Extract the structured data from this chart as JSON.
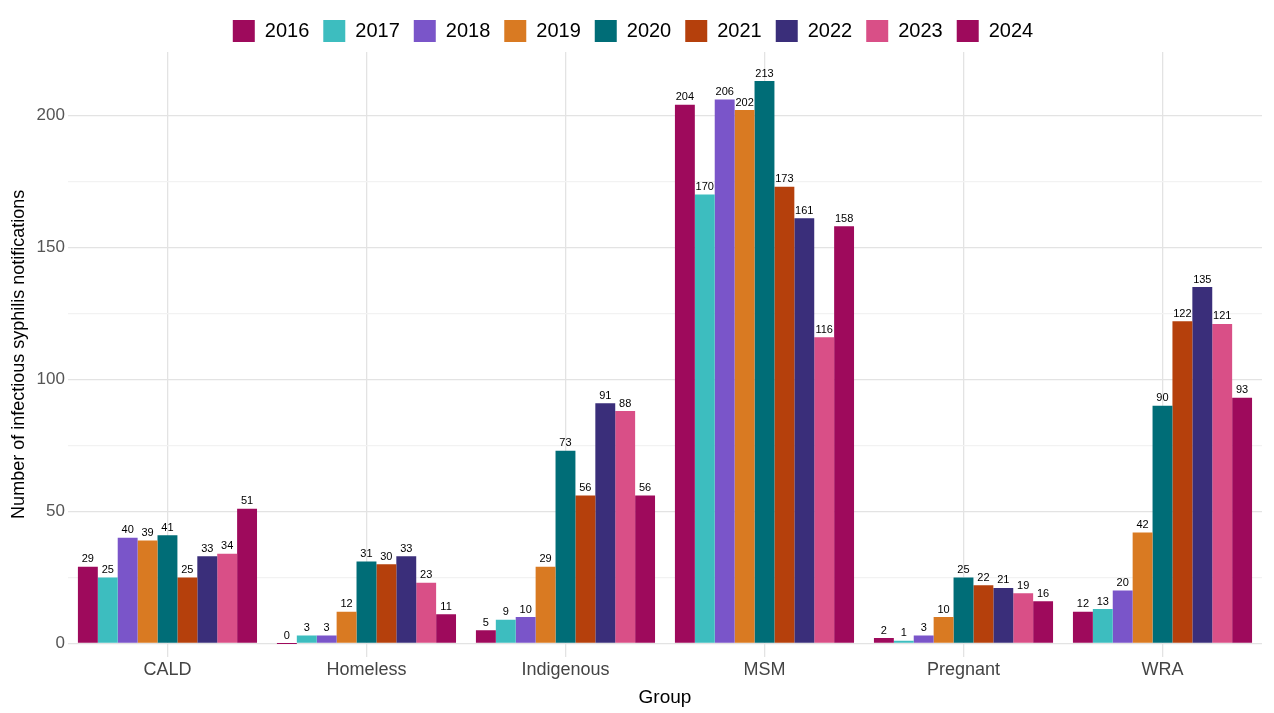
{
  "chart_data": {
    "type": "bar",
    "xlabel": "Group",
    "ylabel": "Number of infectious syphilis notifications",
    "categories": [
      "CALD",
      "Homeless",
      "Indigenous",
      "MSM",
      "Pregnant",
      "WRA"
    ],
    "series": [
      {
        "name": "2016",
        "color": "#9e0a5c",
        "values": [
          29,
          0,
          5,
          204,
          2,
          12
        ]
      },
      {
        "name": "2017",
        "color": "#3dbdbf",
        "values": [
          25,
          3,
          9,
          170,
          1,
          13
        ]
      },
      {
        "name": "2018",
        "color": "#7a55c9",
        "values": [
          40,
          3,
          10,
          206,
          3,
          20
        ]
      },
      {
        "name": "2019",
        "color": "#d97a22",
        "values": [
          39,
          12,
          29,
          202,
          10,
          42
        ]
      },
      {
        "name": "2020",
        "color": "#006d77",
        "values": [
          41,
          31,
          73,
          213,
          25,
          90
        ]
      },
      {
        "name": "2021",
        "color": "#b5400c",
        "values": [
          25,
          30,
          56,
          173,
          22,
          122
        ]
      },
      {
        "name": "2022",
        "color": "#3a2e7a",
        "values": [
          33,
          33,
          91,
          161,
          21,
          135
        ]
      },
      {
        "name": "2023",
        "color": "#d94f87",
        "values": [
          34,
          23,
          88,
          116,
          19,
          121
        ]
      },
      {
        "name": "2024",
        "color": "#9e0a5c",
        "values": [
          51,
          11,
          56,
          158,
          16,
          93
        ]
      }
    ],
    "ylim": [
      -5,
      224
    ],
    "yticks": [
      0,
      {
        "value": 25,
        "label": null
      },
      50,
      {
        "value": 75,
        "label": null
      },
      100,
      {
        "value": 125,
        "label": null
      },
      150,
      {
        "value": 175,
        "label": null
      },
      200
    ],
    "grid": true,
    "legend": "top",
    "data_labels": true
  }
}
